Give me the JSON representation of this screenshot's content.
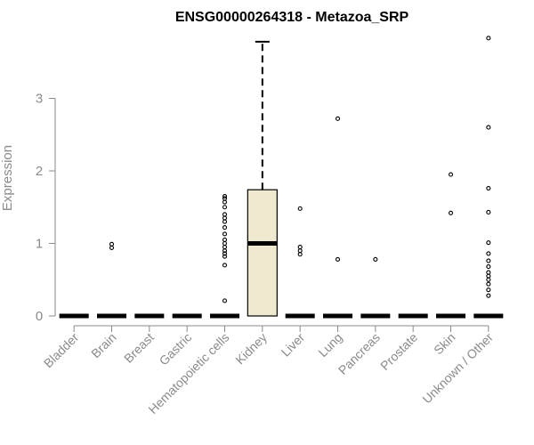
{
  "chart_data": {
    "type": "boxplot",
    "title": "ENSG00000264318 - Metazoa_SRP",
    "ylabel": "Expression",
    "xlabel": "",
    "ylim": [
      0,
      3.9
    ],
    "yticks": [
      0,
      1,
      2,
      3
    ],
    "box_fill": "#efe9d0",
    "categories": [
      "Bladder",
      "Brain",
      "Breast",
      "Gastric",
      "Hematopoietic cells",
      "Kidney",
      "Liver",
      "Lung",
      "Pancreas",
      "Prostate",
      "Skin",
      "Unknown / Other"
    ],
    "boxes": [
      {
        "q1": 0,
        "median": 0,
        "q3": 0,
        "whisker_low": 0,
        "whisker_high": 0,
        "outliers": []
      },
      {
        "q1": 0,
        "median": 0,
        "q3": 0,
        "whisker_low": 0,
        "whisker_high": 0,
        "outliers": [
          0.94,
          0.99
        ]
      },
      {
        "q1": 0,
        "median": 0,
        "q3": 0,
        "whisker_low": 0,
        "whisker_high": 0,
        "outliers": []
      },
      {
        "q1": 0,
        "median": 0,
        "q3": 0,
        "whisker_low": 0,
        "whisker_high": 0,
        "outliers": []
      },
      {
        "q1": 0,
        "median": 0,
        "q3": 0,
        "whisker_low": 0,
        "whisker_high": 0,
        "outliers": [
          0.21,
          0.7,
          0.82,
          0.86,
          0.9,
          0.95,
          1.0,
          1.05,
          1.13,
          1.22,
          1.3,
          1.35,
          1.4,
          1.5,
          1.57,
          1.62,
          1.65
        ]
      },
      {
        "q1": 0,
        "median": 1.0,
        "q3": 1.74,
        "whisker_low": 0,
        "whisker_high": 3.78,
        "outliers": []
      },
      {
        "q1": 0,
        "median": 0,
        "q3": 0,
        "whisker_low": 0,
        "whisker_high": 0,
        "outliers": [
          0.85,
          0.9,
          0.95,
          1.48
        ]
      },
      {
        "q1": 0,
        "median": 0,
        "q3": 0,
        "whisker_low": 0,
        "whisker_high": 0,
        "outliers": [
          0.78,
          2.72
        ]
      },
      {
        "q1": 0,
        "median": 0,
        "q3": 0,
        "whisker_low": 0,
        "whisker_high": 0,
        "outliers": [
          0.78
        ]
      },
      {
        "q1": 0,
        "median": 0,
        "q3": 0,
        "whisker_low": 0,
        "whisker_high": 0,
        "outliers": []
      },
      {
        "q1": 0,
        "median": 0,
        "q3": 0,
        "whisker_low": 0,
        "whisker_high": 0,
        "outliers": [
          1.42,
          1.95
        ]
      },
      {
        "q1": 0,
        "median": 0,
        "q3": 0,
        "whisker_low": 0,
        "whisker_high": 0,
        "outliers": [
          0.28,
          0.36,
          0.44,
          0.5,
          0.55,
          0.6,
          0.68,
          0.76,
          0.86,
          1.01,
          1.43,
          1.76,
          2.6,
          3.83
        ]
      }
    ]
  }
}
